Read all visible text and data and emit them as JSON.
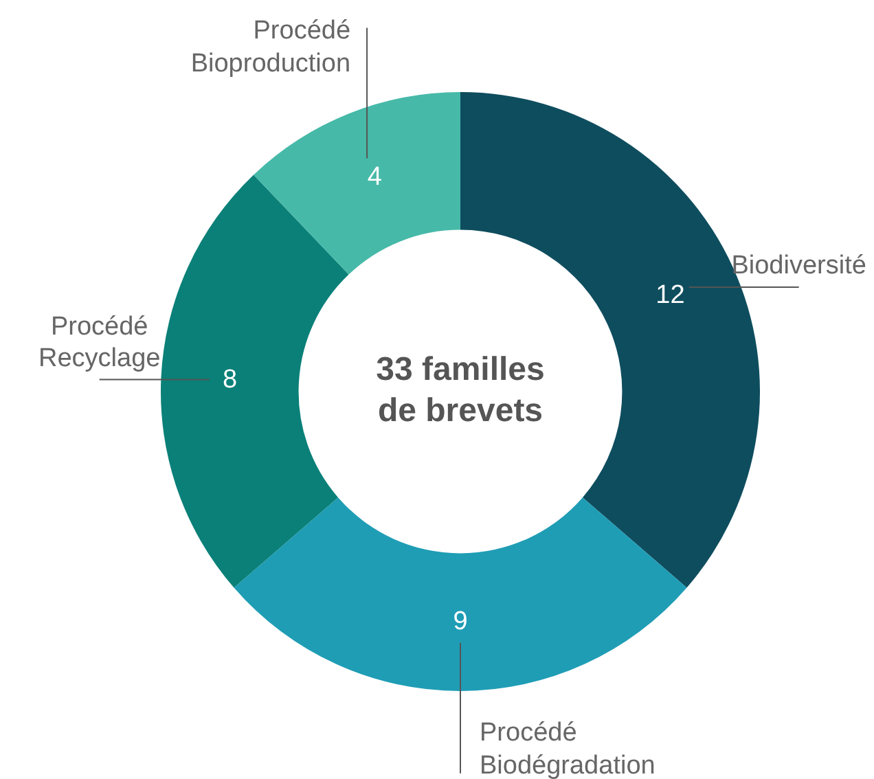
{
  "chart_data": {
    "type": "donut",
    "categories": [
      "Biodiversité",
      "Procédé Biodégradation",
      "Procédé Recyclage",
      "Procédé Bioproduction"
    ],
    "values": [
      12,
      9,
      8,
      4
    ],
    "colors": [
      "#0e4d5e",
      "#1f9db5",
      "#0a8078",
      "#47b9a8"
    ],
    "data_labels": true,
    "annotations": [
      "33 familles de brevets"
    ]
  }
}
